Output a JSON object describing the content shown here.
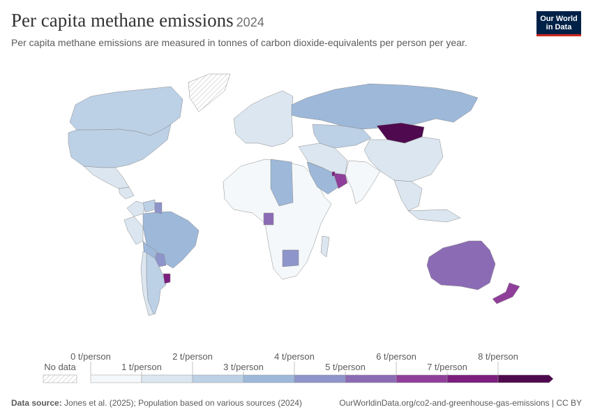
{
  "header": {
    "title": "Per capita methane emissions",
    "year": "2024",
    "subtitle": "Per capita methane emissions are measured in tonnes of carbon dioxide-equivalents per person per year."
  },
  "logo": {
    "line1": "Our World",
    "line2": "in Data"
  },
  "legend": {
    "no_data_label": "No data",
    "upper_ticks": [
      "0 t/person",
      "2 t/person",
      "4 t/person",
      "6 t/person",
      "8 t/person"
    ],
    "lower_ticks": [
      "1 t/person",
      "3 t/person",
      "5 t/person",
      "7 t/person"
    ],
    "colors": [
      "#f5f8fa",
      "#dbe6f0",
      "#bcd0e6",
      "#9db8d9",
      "#8e95ca",
      "#8c6bb5",
      "#8f3f9a",
      "#7b1e7e",
      "#4f0a4f"
    ]
  },
  "footer": {
    "source_label": "Data source:",
    "source_text": "Jones et al. (2025); Population based on various sources (2024)",
    "right_text": "OurWorldinData.org/co2-and-greenhouse-gas-emissions | CC BY"
  },
  "chart_data": {
    "type": "choropleth",
    "unit": "t/person",
    "bins": [
      0,
      1,
      2,
      3,
      4,
      5,
      6,
      7,
      8
    ],
    "regions": [
      {
        "name": "Canada",
        "bin": 2
      },
      {
        "name": "USA",
        "bin": 2
      },
      {
        "name": "Greenland",
        "bin": null
      },
      {
        "name": "Mexico",
        "bin": 1
      },
      {
        "name": "Central America",
        "bin": 1
      },
      {
        "name": "Colombia",
        "bin": 1
      },
      {
        "name": "Venezuela",
        "bin": 2
      },
      {
        "name": "Guyana",
        "bin": 4
      },
      {
        "name": "Peru",
        "bin": 1
      },
      {
        "name": "Brazil",
        "bin": 3
      },
      {
        "name": "Bolivia",
        "bin": 3
      },
      {
        "name": "Paraguay",
        "bin": 4
      },
      {
        "name": "Argentina",
        "bin": 2
      },
      {
        "name": "Chile",
        "bin": 1
      },
      {
        "name": "Uruguay",
        "bin": 7
      },
      {
        "name": "Europe",
        "bin": 1
      },
      {
        "name": "Russia",
        "bin": 3
      },
      {
        "name": "Kazakhstan",
        "bin": 2
      },
      {
        "name": "Mongolia",
        "bin": 8
      },
      {
        "name": "China",
        "bin": 1
      },
      {
        "name": "India",
        "bin": 0
      },
      {
        "name": "Saudi Arabia",
        "bin": 3
      },
      {
        "name": "Oman",
        "bin": 6
      },
      {
        "name": "Qatar",
        "bin": 7
      },
      {
        "name": "Sudan",
        "bin": 3
      },
      {
        "name": "Gabon",
        "bin": 5
      },
      {
        "name": "Botswana",
        "bin": 4
      },
      {
        "name": "Australia",
        "bin": 5
      },
      {
        "name": "New Zealand",
        "bin": 6
      }
    ]
  }
}
